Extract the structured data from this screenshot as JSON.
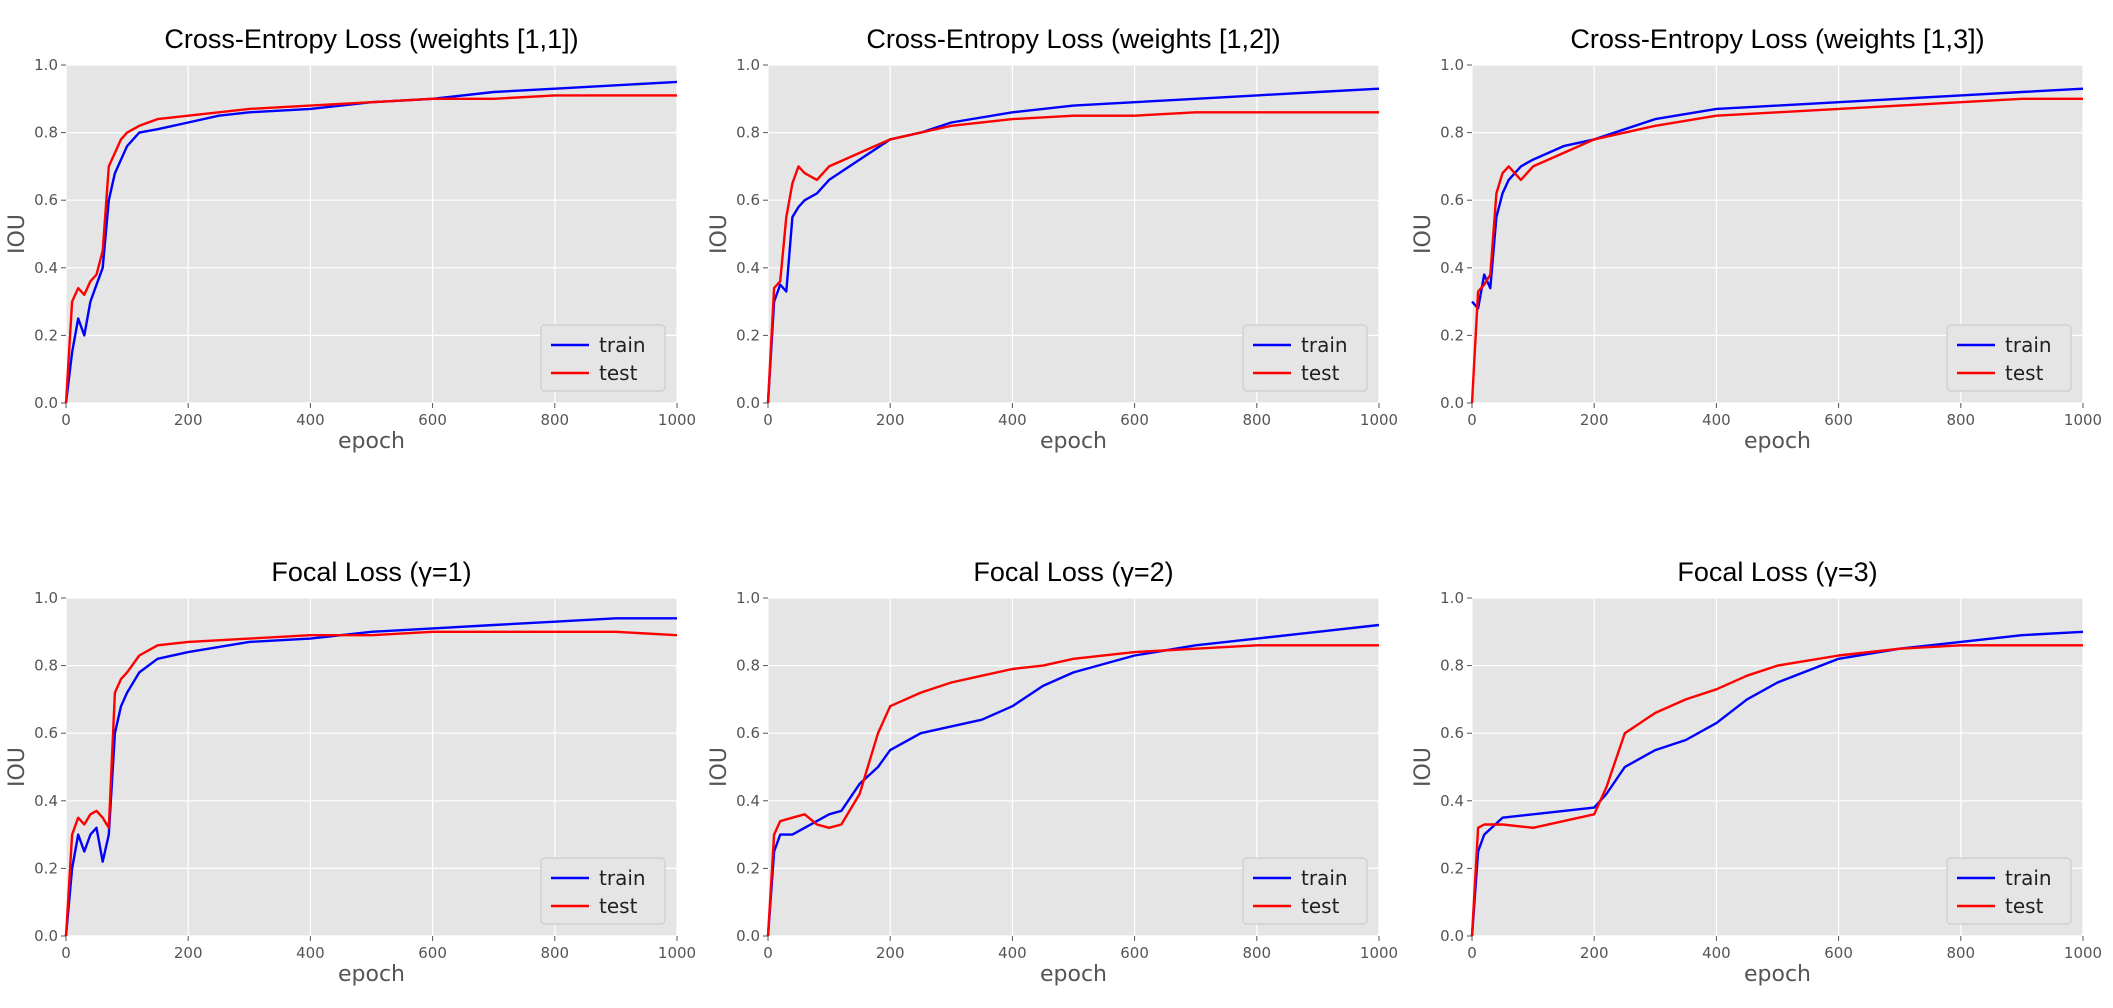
{
  "figure": {
    "background": "#ffffff",
    "panel_background": "#e5e5e5",
    "grid_color": "#ffffff",
    "series_colors": {
      "train": "#0000ff",
      "test": "#ff0000"
    }
  },
  "chart_data": [
    {
      "type": "line",
      "title": "Cross-Entropy Loss (weights [1,1])",
      "xlabel": "epoch",
      "ylabel": "IOU",
      "xlim": [
        0,
        1000
      ],
      "ylim": [
        0,
        1.0
      ],
      "xticks": [
        0,
        200,
        400,
        600,
        800,
        1000
      ],
      "yticks": [
        0.0,
        0.2,
        0.4,
        0.6,
        0.8,
        1.0
      ],
      "grid": true,
      "legend": "bottom-right",
      "series": [
        {
          "name": "train",
          "x": [
            0,
            10,
            20,
            30,
            40,
            50,
            60,
            70,
            80,
            90,
            100,
            120,
            150,
            200,
            250,
            300,
            400,
            500,
            600,
            700,
            800,
            900,
            1000
          ],
          "y": [
            0.0,
            0.15,
            0.25,
            0.2,
            0.3,
            0.35,
            0.4,
            0.6,
            0.68,
            0.72,
            0.76,
            0.8,
            0.81,
            0.83,
            0.85,
            0.86,
            0.87,
            0.89,
            0.9,
            0.92,
            0.93,
            0.94,
            0.95
          ]
        },
        {
          "name": "test",
          "x": [
            0,
            10,
            20,
            30,
            40,
            50,
            60,
            70,
            80,
            90,
            100,
            120,
            150,
            200,
            250,
            300,
            400,
            500,
            600,
            700,
            800,
            900,
            1000
          ],
          "y": [
            0.0,
            0.3,
            0.34,
            0.32,
            0.36,
            0.38,
            0.45,
            0.7,
            0.74,
            0.78,
            0.8,
            0.82,
            0.84,
            0.85,
            0.86,
            0.87,
            0.88,
            0.89,
            0.9,
            0.9,
            0.91,
            0.91,
            0.91
          ]
        }
      ]
    },
    {
      "type": "line",
      "title": "Cross-Entropy Loss (weights [1,2])",
      "xlabel": "epoch",
      "ylabel": "IOU",
      "xlim": [
        0,
        1000
      ],
      "ylim": [
        0,
        1.0
      ],
      "xticks": [
        0,
        200,
        400,
        600,
        800,
        1000
      ],
      "yticks": [
        0.0,
        0.2,
        0.4,
        0.6,
        0.8,
        1.0
      ],
      "grid": true,
      "legend": "bottom-right",
      "series": [
        {
          "name": "train",
          "x": [
            0,
            10,
            20,
            30,
            40,
            50,
            60,
            80,
            100,
            150,
            200,
            250,
            300,
            400,
            500,
            600,
            700,
            800,
            900,
            1000
          ],
          "y": [
            0.0,
            0.3,
            0.35,
            0.33,
            0.55,
            0.58,
            0.6,
            0.62,
            0.66,
            0.72,
            0.78,
            0.8,
            0.83,
            0.86,
            0.88,
            0.89,
            0.9,
            0.91,
            0.92,
            0.93
          ]
        },
        {
          "name": "test",
          "x": [
            0,
            10,
            20,
            30,
            40,
            50,
            60,
            80,
            100,
            150,
            200,
            250,
            300,
            400,
            500,
            600,
            700,
            800,
            900,
            1000
          ],
          "y": [
            0.0,
            0.34,
            0.36,
            0.55,
            0.65,
            0.7,
            0.68,
            0.66,
            0.7,
            0.74,
            0.78,
            0.8,
            0.82,
            0.84,
            0.85,
            0.85,
            0.86,
            0.86,
            0.86,
            0.86
          ]
        }
      ]
    },
    {
      "type": "line",
      "title": "Cross-Entropy Loss (weights [1,3])",
      "xlabel": "epoch",
      "ylabel": "IOU",
      "xlim": [
        0,
        1000
      ],
      "ylim": [
        0,
        1.0
      ],
      "xticks": [
        0,
        200,
        400,
        600,
        800,
        1000
      ],
      "yticks": [
        0.0,
        0.2,
        0.4,
        0.6,
        0.8,
        1.0
      ],
      "grid": true,
      "legend": "bottom-right",
      "series": [
        {
          "name": "train",
          "x": [
            0,
            10,
            20,
            30,
            40,
            50,
            60,
            80,
            100,
            150,
            200,
            250,
            300,
            400,
            500,
            600,
            700,
            800,
            900,
            1000
          ],
          "y": [
            0.3,
            0.28,
            0.38,
            0.34,
            0.55,
            0.62,
            0.66,
            0.7,
            0.72,
            0.76,
            0.78,
            0.81,
            0.84,
            0.87,
            0.88,
            0.89,
            0.9,
            0.91,
            0.92,
            0.93
          ]
        },
        {
          "name": "test",
          "x": [
            0,
            10,
            20,
            30,
            40,
            50,
            60,
            80,
            100,
            150,
            200,
            250,
            300,
            400,
            500,
            600,
            700,
            800,
            900,
            1000
          ],
          "y": [
            0.0,
            0.33,
            0.35,
            0.38,
            0.62,
            0.68,
            0.7,
            0.66,
            0.7,
            0.74,
            0.78,
            0.8,
            0.82,
            0.85,
            0.86,
            0.87,
            0.88,
            0.89,
            0.9,
            0.9
          ]
        }
      ]
    },
    {
      "type": "line",
      "title": "Focal Loss (γ=1)",
      "xlabel": "epoch",
      "ylabel": "IOU",
      "xlim": [
        0,
        1000
      ],
      "ylim": [
        0,
        1.0
      ],
      "xticks": [
        0,
        200,
        400,
        600,
        800,
        1000
      ],
      "yticks": [
        0.0,
        0.2,
        0.4,
        0.6,
        0.8,
        1.0
      ],
      "grid": true,
      "legend": "bottom-right",
      "series": [
        {
          "name": "train",
          "x": [
            0,
            10,
            20,
            30,
            40,
            50,
            60,
            70,
            80,
            90,
            100,
            120,
            150,
            200,
            300,
            400,
            500,
            600,
            700,
            800,
            900,
            1000
          ],
          "y": [
            0.0,
            0.2,
            0.3,
            0.25,
            0.3,
            0.32,
            0.22,
            0.3,
            0.6,
            0.68,
            0.72,
            0.78,
            0.82,
            0.84,
            0.87,
            0.88,
            0.9,
            0.91,
            0.92,
            0.93,
            0.94,
            0.94
          ]
        },
        {
          "name": "test",
          "x": [
            0,
            10,
            20,
            30,
            40,
            50,
            60,
            70,
            80,
            90,
            100,
            120,
            150,
            200,
            300,
            400,
            500,
            600,
            700,
            800,
            900,
            1000
          ],
          "y": [
            0.0,
            0.3,
            0.35,
            0.33,
            0.36,
            0.37,
            0.35,
            0.32,
            0.72,
            0.76,
            0.78,
            0.83,
            0.86,
            0.87,
            0.88,
            0.89,
            0.89,
            0.9,
            0.9,
            0.9,
            0.9,
            0.89
          ]
        }
      ]
    },
    {
      "type": "line",
      "title": "Focal Loss (γ=2)",
      "xlabel": "epoch",
      "ylabel": "IOU",
      "xlim": [
        0,
        1000
      ],
      "ylim": [
        0,
        1.0
      ],
      "xticks": [
        0,
        200,
        400,
        600,
        800,
        1000
      ],
      "yticks": [
        0.0,
        0.2,
        0.4,
        0.6,
        0.8,
        1.0
      ],
      "grid": true,
      "legend": "bottom-right",
      "series": [
        {
          "name": "train",
          "x": [
            0,
            10,
            20,
            40,
            60,
            80,
            100,
            120,
            150,
            180,
            200,
            250,
            300,
            350,
            400,
            450,
            500,
            600,
            700,
            800,
            900,
            1000
          ],
          "y": [
            0.0,
            0.25,
            0.3,
            0.3,
            0.32,
            0.34,
            0.36,
            0.37,
            0.45,
            0.5,
            0.55,
            0.6,
            0.62,
            0.64,
            0.68,
            0.74,
            0.78,
            0.83,
            0.86,
            0.88,
            0.9,
            0.92
          ]
        },
        {
          "name": "test",
          "x": [
            0,
            10,
            20,
            40,
            60,
            80,
            100,
            120,
            150,
            180,
            200,
            250,
            300,
            350,
            400,
            450,
            500,
            600,
            700,
            800,
            900,
            1000
          ],
          "y": [
            0.0,
            0.3,
            0.34,
            0.35,
            0.36,
            0.33,
            0.32,
            0.33,
            0.42,
            0.6,
            0.68,
            0.72,
            0.75,
            0.77,
            0.79,
            0.8,
            0.82,
            0.84,
            0.85,
            0.86,
            0.86,
            0.86
          ]
        }
      ]
    },
    {
      "type": "line",
      "title": "Focal Loss (γ=3)",
      "xlabel": "epoch",
      "ylabel": "IOU",
      "xlim": [
        0,
        1000
      ],
      "ylim": [
        0,
        1.0
      ],
      "xticks": [
        0,
        200,
        400,
        600,
        800,
        1000
      ],
      "yticks": [
        0.0,
        0.2,
        0.4,
        0.6,
        0.8,
        1.0
      ],
      "grid": true,
      "legend": "bottom-right",
      "series": [
        {
          "name": "train",
          "x": [
            0,
            10,
            20,
            50,
            100,
            150,
            200,
            220,
            250,
            300,
            350,
            400,
            450,
            500,
            600,
            700,
            800,
            900,
            1000
          ],
          "y": [
            0.0,
            0.25,
            0.3,
            0.35,
            0.36,
            0.37,
            0.38,
            0.42,
            0.5,
            0.55,
            0.58,
            0.63,
            0.7,
            0.75,
            0.82,
            0.85,
            0.87,
            0.89,
            0.9
          ]
        },
        {
          "name": "test",
          "x": [
            0,
            10,
            20,
            50,
            100,
            150,
            200,
            220,
            250,
            300,
            350,
            400,
            450,
            500,
            600,
            700,
            800,
            900,
            1000
          ],
          "y": [
            0.0,
            0.32,
            0.33,
            0.33,
            0.32,
            0.34,
            0.36,
            0.44,
            0.6,
            0.66,
            0.7,
            0.73,
            0.77,
            0.8,
            0.83,
            0.85,
            0.86,
            0.86,
            0.86
          ]
        }
      ]
    }
  ]
}
